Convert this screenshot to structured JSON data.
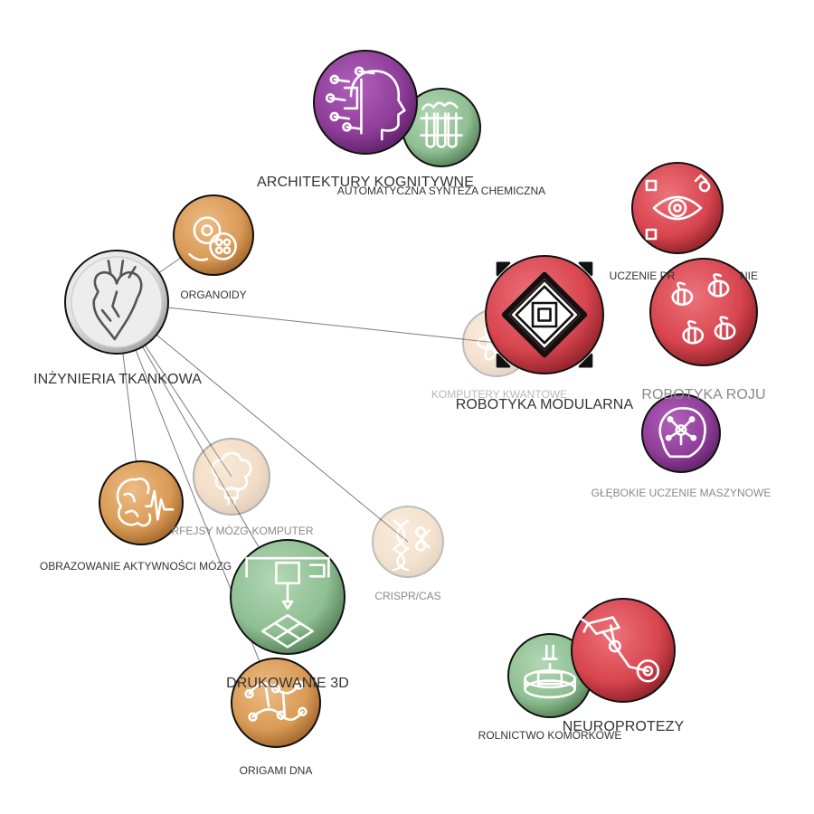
{
  "graph": {
    "colors": {
      "purple": "#8e3d98",
      "green": "#8fbf92",
      "orange": "#d99a55",
      "red": "#d8454f",
      "gray": "#e3e3e3",
      "edge": "#7a7a7a"
    },
    "nodes": [
      {
        "id": "architektury",
        "label": "ARCHITEKTURY KOGNITYWNE",
        "color": "purple",
        "icon": "brain-head-icon"
      },
      {
        "id": "automatyczna",
        "label": "AUTOMATYCZNA SYNTEZA CHEMICZNA",
        "color": "green",
        "icon": "test-tubes-icon"
      },
      {
        "id": "organoidy",
        "label": "ORGANOIDY",
        "color": "orange",
        "icon": "cells-icon"
      },
      {
        "id": "inzynieria",
        "label": "INŻYNIERIA TKANKOWA",
        "color": "gray",
        "icon": "heart-icon"
      },
      {
        "id": "uczenie",
        "label": "UCZENIE PR",
        "color": "red",
        "icon": "eye-cubes-icon"
      },
      {
        "id": "uczenie-tail",
        "label": "NIE",
        "color": "red",
        "icon": ""
      },
      {
        "id": "robotyka-modularna",
        "label": "ROBOTYKA MODULARNA",
        "color": "red",
        "icon": "modular-diamond-icon"
      },
      {
        "id": "komputery",
        "label": "KOMPUTERY KWANTOWE",
        "color": "orange",
        "icon": "quantum-icon"
      },
      {
        "id": "robotyka-roju",
        "label": "ROBOTYKA ROJU",
        "color": "red",
        "icon": "swarm-bees-icon"
      },
      {
        "id": "glebokie",
        "label": "GŁĘBOKIE UCZENIE MASZYNOWE",
        "color": "purple",
        "icon": "neural-head-icon"
      },
      {
        "id": "interfejsy",
        "label": "RFEJSY MÓZG-KOMPUTER",
        "color": "orange",
        "icon": "brain-chip-icon"
      },
      {
        "id": "obrazowanie",
        "label": "OBRAZOWANIE AKTYWNOŚCI MÓZG",
        "color": "orange",
        "icon": "brain-wave-icon"
      },
      {
        "id": "crispr",
        "label": "CRISPR/CAS",
        "color": "orange",
        "icon": "dna-scissors-icon"
      },
      {
        "id": "drukowanie",
        "label": "DRUKOWANIE 3D",
        "color": "green",
        "icon": "printer-3d-icon"
      },
      {
        "id": "origami",
        "label": "ORIGAMI DNA",
        "color": "orange",
        "icon": "dna-origami-icon"
      },
      {
        "id": "neuroprotezy",
        "label": "NEUROPROTEZY",
        "color": "red",
        "icon": "robotic-arm-icon"
      },
      {
        "id": "rolnictwo",
        "label": "ROLNICTWO KOMÓRKOWE",
        "color": "green",
        "icon": "petri-dish-icon"
      }
    ],
    "edges": [
      {
        "from": "inzynieria",
        "to": "organoidy"
      },
      {
        "from": "inzynieria",
        "to": "komputery"
      },
      {
        "from": "inzynieria",
        "to": "obrazowanie"
      },
      {
        "from": "inzynieria",
        "to": "interfejsy"
      },
      {
        "from": "inzynieria",
        "to": "crispr"
      },
      {
        "from": "inzynieria",
        "to": "drukowanie"
      },
      {
        "from": "inzynieria",
        "to": "origami"
      }
    ]
  }
}
